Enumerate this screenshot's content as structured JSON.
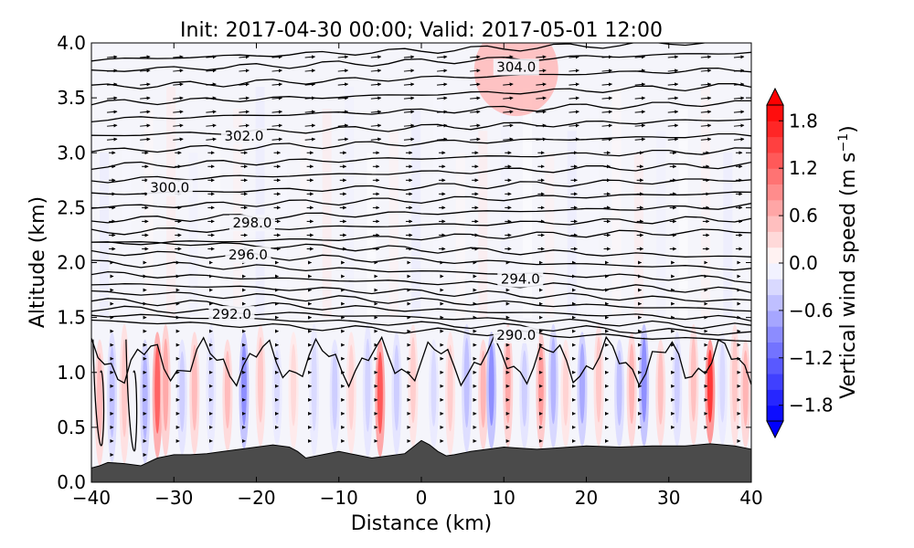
{
  "chart_data": {
    "type": "contour",
    "title": "Init: 2017-04-30 00:00; Valid: 2017-05-01 12:00",
    "xlabel": "Distance (km)",
    "ylabel": "Altitude (km)",
    "xlim": [
      -40,
      40
    ],
    "ylim": [
      0,
      4
    ],
    "xticks": [
      "−40",
      "−30",
      "−20",
      "−10",
      "0",
      "10",
      "20",
      "30",
      "40"
    ],
    "yticks": [
      "0.0",
      "0.5",
      "1.0",
      "1.5",
      "2.0",
      "2.5",
      "3.0",
      "3.5",
      "4.0"
    ],
    "colorbar": {
      "label": "Vertical wind speed (m s",
      "label_sup": "−1",
      "label_end": ")",
      "range": [
        -2.0,
        2.0
      ],
      "ticks": [
        "1.8",
        "1.2",
        "0.6",
        "0.0",
        "−0.6",
        "−1.2",
        "−1.8"
      ],
      "colors": {
        "max": "#ff0000",
        "mid": "#ffffff",
        "min": "#0000ff"
      }
    },
    "terrain": {
      "color": "#4b4b4b",
      "x": [
        -40,
        -39,
        -38,
        -36,
        -34,
        -32,
        -30,
        -28,
        -26,
        -24,
        -22,
        -20,
        -18,
        -16,
        -15,
        -14,
        -12,
        -10,
        -8,
        -6,
        -4,
        -2,
        -1,
        0,
        1,
        2,
        3,
        4,
        6,
        8,
        10,
        12,
        14,
        16,
        18,
        20,
        24,
        28,
        32,
        35,
        38,
        40
      ],
      "z": [
        0.13,
        0.15,
        0.18,
        0.17,
        0.15,
        0.22,
        0.25,
        0.25,
        0.26,
        0.28,
        0.3,
        0.32,
        0.34,
        0.32,
        0.28,
        0.22,
        0.25,
        0.28,
        0.25,
        0.22,
        0.24,
        0.26,
        0.32,
        0.38,
        0.34,
        0.28,
        0.24,
        0.25,
        0.28,
        0.3,
        0.32,
        0.31,
        0.3,
        0.31,
        0.32,
        0.33,
        0.32,
        0.33,
        0.33,
        0.35,
        0.33,
        0.3
      ]
    },
    "contour_labels": [
      {
        "value": "304.0",
        "x": 11.5,
        "z": 3.78
      },
      {
        "value": "302.0",
        "x": -21.5,
        "z": 3.15
      },
      {
        "value": "300.0",
        "x": -30.5,
        "z": 2.68
      },
      {
        "value": "298.0",
        "x": -20.5,
        "z": 2.36
      },
      {
        "value": "296.0",
        "x": -21,
        "z": 2.07
      },
      {
        "value": "294.0",
        "x": 12,
        "z": 1.85
      },
      {
        "value": "292.0",
        "x": -23,
        "z": 1.53
      },
      {
        "value": "290.0",
        "x": 11.5,
        "z": 1.34
      }
    ]
  }
}
